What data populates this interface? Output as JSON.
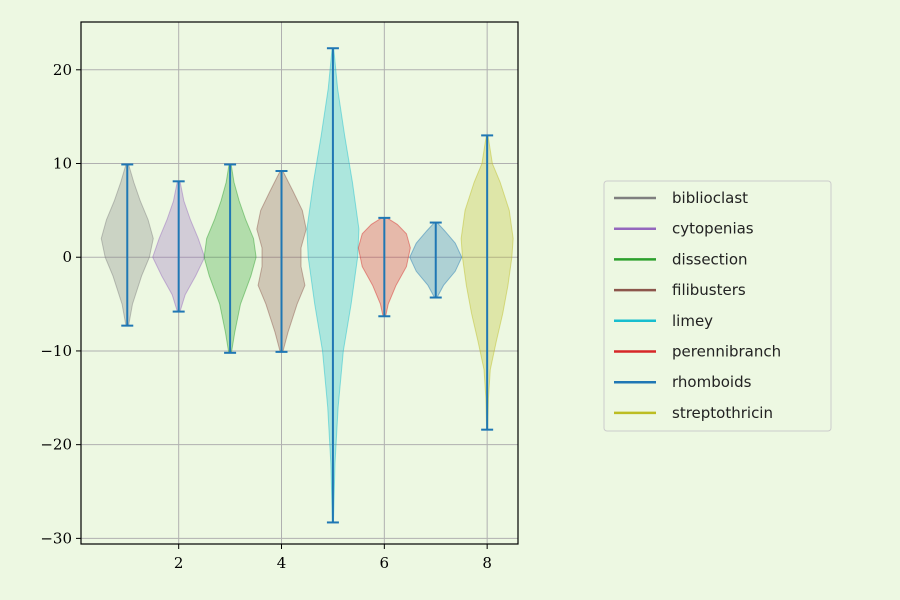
{
  "chart_data": {
    "type": "violin",
    "title": "",
    "xlabel": "",
    "ylabel": "",
    "xlim": [
      0.1,
      8.6
    ],
    "ylim": [
      -30.6,
      25.1
    ],
    "x_ticks": [
      2,
      4,
      6,
      8
    ],
    "y_ticks": [
      -30,
      -20,
      -10,
      0,
      10,
      20
    ],
    "grid": true,
    "legend_position": "right",
    "series": [
      {
        "name": "biblioclast",
        "x": 1,
        "min": -7.3,
        "max": 9.9,
        "color": "#7f7f7f",
        "profile": [
          [
            -7.3,
            0.05
          ],
          [
            -5,
            0.2
          ],
          [
            -2,
            0.55
          ],
          [
            0,
            0.85
          ],
          [
            2,
            1.0
          ],
          [
            4,
            0.8
          ],
          [
            6,
            0.5
          ],
          [
            8,
            0.25
          ],
          [
            9.9,
            0.05
          ]
        ]
      },
      {
        "name": "cytopenias",
        "x": 2,
        "min": -5.8,
        "max": 8.1,
        "color": "#9467bd",
        "profile": [
          [
            -5.8,
            0.05
          ],
          [
            -4,
            0.25
          ],
          [
            -2,
            0.65
          ],
          [
            0,
            1.0
          ],
          [
            2,
            0.75
          ],
          [
            4,
            0.45
          ],
          [
            6,
            0.2
          ],
          [
            8.1,
            0.05
          ]
        ]
      },
      {
        "name": "dissection",
        "x": 3,
        "min": -10.2,
        "max": 9.9,
        "color": "#2ca02c",
        "profile": [
          [
            -10.2,
            0.05
          ],
          [
            -8,
            0.18
          ],
          [
            -5,
            0.4
          ],
          [
            -2,
            0.8
          ],
          [
            0,
            1.0
          ],
          [
            2,
            0.9
          ],
          [
            4,
            0.6
          ],
          [
            6,
            0.35
          ],
          [
            8,
            0.15
          ],
          [
            9.9,
            0.04
          ]
        ]
      },
      {
        "name": "filibusters",
        "x": 4,
        "min": -10.1,
        "max": 9.2,
        "color": "#8c564b",
        "profile": [
          [
            -10.1,
            0.05
          ],
          [
            -8,
            0.25
          ],
          [
            -5,
            0.6
          ],
          [
            -3,
            0.9
          ],
          [
            -1,
            0.75
          ],
          [
            1,
            0.75
          ],
          [
            3,
            0.95
          ],
          [
            5,
            0.8
          ],
          [
            7,
            0.45
          ],
          [
            9.2,
            0.05
          ]
        ]
      },
      {
        "name": "limey",
        "x": 5,
        "min": -28.3,
        "max": 22.3,
        "color": "#17becf",
        "profile": [
          [
            -28.3,
            0.02
          ],
          [
            -22,
            0.08
          ],
          [
            -16,
            0.2
          ],
          [
            -10,
            0.4
          ],
          [
            -5,
            0.7
          ],
          [
            0,
            0.95
          ],
          [
            3,
            1.0
          ],
          [
            8,
            0.75
          ],
          [
            13,
            0.45
          ],
          [
            18,
            0.18
          ],
          [
            22.3,
            0.03
          ]
        ]
      },
      {
        "name": "perennibranch",
        "x": 6,
        "min": -6.3,
        "max": 4.2,
        "color": "#d62728",
        "profile": [
          [
            -6.3,
            0.05
          ],
          [
            -5,
            0.15
          ],
          [
            -3,
            0.45
          ],
          [
            -1,
            0.85
          ],
          [
            1,
            1.0
          ],
          [
            2.5,
            0.85
          ],
          [
            3.5,
            0.5
          ],
          [
            4.2,
            0.1
          ]
        ]
      },
      {
        "name": "rhomboids",
        "x": 7,
        "min": -4.3,
        "max": 3.7,
        "color": "#1f77b4",
        "profile": [
          [
            -4.3,
            0.05
          ],
          [
            -3,
            0.3
          ],
          [
            -1.5,
            0.75
          ],
          [
            0,
            1.0
          ],
          [
            1.5,
            0.75
          ],
          [
            2.8,
            0.35
          ],
          [
            3.7,
            0.05
          ]
        ]
      },
      {
        "name": "streptothricin",
        "x": 8,
        "min": -18.4,
        "max": 13.0,
        "color": "#bcbd22",
        "profile": [
          [
            -18.4,
            0.02
          ],
          [
            -15,
            0.05
          ],
          [
            -12,
            0.12
          ],
          [
            -9,
            0.35
          ],
          [
            -6,
            0.6
          ],
          [
            -3,
            0.8
          ],
          [
            0,
            0.95
          ],
          [
            2,
            1.0
          ],
          [
            5,
            0.85
          ],
          [
            8,
            0.5
          ],
          [
            10,
            0.2
          ],
          [
            13,
            0.03
          ]
        ]
      }
    ],
    "whisker_color": "#1f77b4"
  }
}
